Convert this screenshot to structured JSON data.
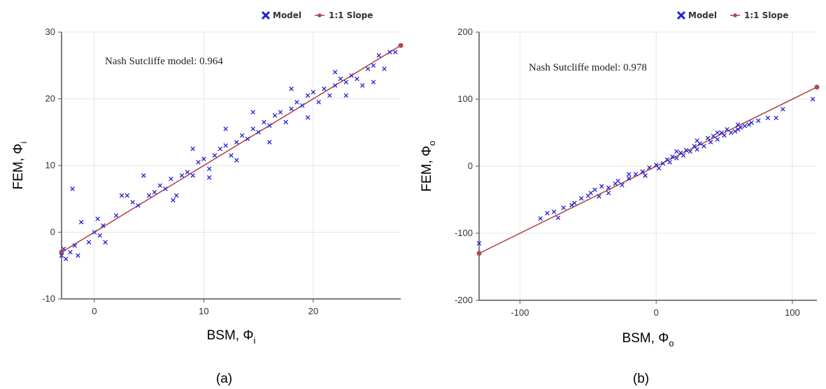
{
  "legend": {
    "model_label": "Model",
    "slope_label": "1:1 Slope"
  },
  "colors": {
    "model": "#1f1fd6",
    "slope": "#b04a4a",
    "grid": "#e6e6e6",
    "axis": "#555555"
  },
  "chart_data": [
    {
      "type": "scatter",
      "caption": "(a)",
      "annotation": "Nash Sutcliffe model: 0.964",
      "xlabel": "BSM, Φ",
      "xlabel_sub": "i",
      "ylabel": "FEM, Φ",
      "ylabel_sub": "i",
      "xlim": [
        -3,
        28
      ],
      "ylim": [
        -10,
        30
      ],
      "xticks": [
        0,
        10,
        20
      ],
      "yticks": [
        -10,
        0,
        10,
        20,
        30
      ],
      "grid": true,
      "legend_position": "top-right",
      "series": [
        {
          "name": "Model",
          "points": [
            [
              -3,
              -3.5
            ],
            [
              -2.8,
              -2.5
            ],
            [
              -2.6,
              -4
            ],
            [
              -2.2,
              -3
            ],
            [
              -1.8,
              -2
            ],
            [
              -1.5,
              -3.5
            ],
            [
              -2,
              6.5
            ],
            [
              -1.2,
              1.5
            ],
            [
              -0.5,
              -1.5
            ],
            [
              0,
              0
            ],
            [
              0.3,
              2
            ],
            [
              0.8,
              1
            ],
            [
              1,
              -1.5
            ],
            [
              0.5,
              -0.5
            ],
            [
              2,
              2.5
            ],
            [
              2.5,
              5.5
            ],
            [
              3,
              5.5
            ],
            [
              3.5,
              4.5
            ],
            [
              4,
              4
            ],
            [
              4.5,
              8.5
            ],
            [
              5,
              5.5
            ],
            [
              5.5,
              6
            ],
            [
              6,
              7
            ],
            [
              6.5,
              6.5
            ],
            [
              7,
              8
            ],
            [
              7.5,
              5.5
            ],
            [
              8,
              8.5
            ],
            [
              8.5,
              9
            ],
            [
              9,
              8.5
            ],
            [
              9.5,
              10.5
            ],
            [
              10,
              11
            ],
            [
              10.5,
              9.5
            ],
            [
              11,
              11.5
            ],
            [
              11.5,
              12.5
            ],
            [
              12,
              13
            ],
            [
              12.5,
              11.5
            ],
            [
              13,
              13.5
            ],
            [
              13.5,
              14.5
            ],
            [
              14,
              14
            ],
            [
              14.5,
              15.5
            ],
            [
              15,
              15
            ],
            [
              15.5,
              16.5
            ],
            [
              16,
              16
            ],
            [
              16.5,
              17.5
            ],
            [
              17,
              18
            ],
            [
              17.5,
              16.5
            ],
            [
              18,
              18.5
            ],
            [
              18.5,
              19.5
            ],
            [
              19,
              19
            ],
            [
              19.5,
              20.5
            ],
            [
              20,
              21
            ],
            [
              20.5,
              19.5
            ],
            [
              21,
              21.5
            ],
            [
              21.5,
              20.5
            ],
            [
              22,
              22
            ],
            [
              22.5,
              23
            ],
            [
              23,
              22.5
            ],
            [
              23.5,
              23.5
            ],
            [
              24,
              23
            ],
            [
              24.5,
              22
            ],
            [
              25,
              24.5
            ],
            [
              25.5,
              25
            ],
            [
              26,
              26.5
            ],
            [
              26.5,
              24.5
            ],
            [
              27,
              27
            ],
            [
              27.5,
              27
            ],
            [
              7.2,
              4.8
            ],
            [
              10.5,
              8.2
            ],
            [
              13,
              10.8
            ],
            [
              16,
              13.5
            ],
            [
              19.5,
              17.2
            ],
            [
              23,
              20.5
            ],
            [
              25.5,
              22.5
            ],
            [
              12,
              15.5
            ],
            [
              14.5,
              18
            ],
            [
              18,
              21.5
            ],
            [
              9,
              12.5
            ],
            [
              22,
              24
            ]
          ]
        },
        {
          "name": "1:1 Slope",
          "points": [
            [
              -3,
              -3
            ],
            [
              28,
              28
            ]
          ]
        }
      ]
    },
    {
      "type": "scatter",
      "caption": "(b)",
      "annotation": "Nash Sutcliffe model: 0.978",
      "xlabel": "BSM, Φ",
      "xlabel_sub": "o",
      "ylabel": "FEM, Φ",
      "ylabel_sub": "o",
      "xlim": [
        -130,
        118
      ],
      "ylim": [
        -200,
        200
      ],
      "xticks": [
        -100,
        0,
        100
      ],
      "yticks": [
        -200,
        -100,
        0,
        100,
        200
      ],
      "grid": true,
      "legend_position": "top-right",
      "series": [
        {
          "name": "Model",
          "points": [
            [
              -130,
              -115
            ],
            [
              -85,
              -78
            ],
            [
              -80,
              -70
            ],
            [
              -75,
              -68
            ],
            [
              -72,
              -77
            ],
            [
              -68,
              -62
            ],
            [
              -62,
              -58
            ],
            [
              -55,
              -48
            ],
            [
              -50,
              -44
            ],
            [
              -48,
              -40
            ],
            [
              -45,
              -35
            ],
            [
              -42,
              -45
            ],
            [
              -40,
              -30
            ],
            [
              -35,
              -32
            ],
            [
              -30,
              -26
            ],
            [
              -28,
              -22
            ],
            [
              -25,
              -28
            ],
            [
              -20,
              -18
            ],
            [
              -15,
              -12
            ],
            [
              -10,
              -8
            ],
            [
              -8,
              -14
            ],
            [
              -5,
              -2
            ],
            [
              0,
              2
            ],
            [
              2,
              -3
            ],
            [
              5,
              4
            ],
            [
              8,
              10
            ],
            [
              10,
              6
            ],
            [
              12,
              14
            ],
            [
              15,
              12
            ],
            [
              18,
              20
            ],
            [
              20,
              16
            ],
            [
              22,
              24
            ],
            [
              25,
              22
            ],
            [
              28,
              30
            ],
            [
              30,
              25
            ],
            [
              32,
              34
            ],
            [
              35,
              30
            ],
            [
              38,
              42
            ],
            [
              40,
              36
            ],
            [
              42,
              45
            ],
            [
              45,
              40
            ],
            [
              48,
              50
            ],
            [
              50,
              46
            ],
            [
              52,
              55
            ],
            [
              55,
              50
            ],
            [
              58,
              52
            ],
            [
              60,
              55
            ],
            [
              62,
              58
            ],
            [
              65,
              60
            ],
            [
              68,
              62
            ],
            [
              70,
              65
            ],
            [
              75,
              68
            ],
            [
              82,
              72
            ],
            [
              88,
              72
            ],
            [
              93,
              85
            ],
            [
              115,
              100
            ],
            [
              -60,
              -55
            ],
            [
              -20,
              -12
            ],
            [
              15,
              22
            ],
            [
              45,
              50
            ],
            [
              60,
              62
            ],
            [
              -35,
              -40
            ],
            [
              30,
              38
            ]
          ]
        },
        {
          "name": "1:1 Slope",
          "points": [
            [
              -130,
              -130
            ],
            [
              118,
              118
            ]
          ]
        }
      ]
    }
  ]
}
